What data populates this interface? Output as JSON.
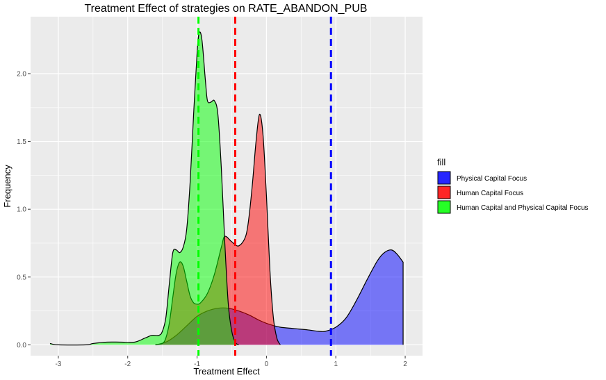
{
  "chart_data": {
    "type": "area",
    "title": "Treatment Effect of strategies on RATE_ABANDON_PUB",
    "xlabel": "Treatment Effect",
    "ylabel": "Frequency",
    "xlim": [
      -3.4,
      2.25
    ],
    "ylim": [
      -0.08,
      2.42
    ],
    "x_ticks": [
      -3,
      -2,
      -1,
      0,
      1,
      2
    ],
    "x_tick_labels": [
      "-3",
      "-2",
      "-1",
      "0",
      "1",
      "2"
    ],
    "y_ticks": [
      0.0,
      0.5,
      1.0,
      1.5,
      2.0
    ],
    "y_tick_labels": [
      "0.0",
      "0.5",
      "1.0",
      "1.5",
      "2.0"
    ],
    "grid": true,
    "panel_background": "#ebebeb",
    "legend": {
      "title": "fill",
      "position": "right",
      "entries": [
        "Physical Capital Focus",
        "Human Capital Focus",
        "Human Capital and Physical Capital Focus"
      ]
    },
    "series": [
      {
        "name": "Physical Capital Focus",
        "fill": "#0000ff",
        "opacity": 0.5,
        "mean": 0.93,
        "points": [
          [
            -1.6,
            0.0
          ],
          [
            -1.45,
            0.02
          ],
          [
            -1.3,
            0.07
          ],
          [
            -1.15,
            0.14
          ],
          [
            -1.0,
            0.21
          ],
          [
            -0.85,
            0.25
          ],
          [
            -0.7,
            0.27
          ],
          [
            -0.55,
            0.27
          ],
          [
            -0.4,
            0.25
          ],
          [
            -0.25,
            0.22
          ],
          [
            -0.1,
            0.18
          ],
          [
            0.05,
            0.15
          ],
          [
            0.2,
            0.13
          ],
          [
            0.4,
            0.12
          ],
          [
            0.6,
            0.11
          ],
          [
            0.75,
            0.1
          ],
          [
            0.85,
            0.1
          ],
          [
            1.0,
            0.13
          ],
          [
            1.15,
            0.2
          ],
          [
            1.3,
            0.33
          ],
          [
            1.45,
            0.48
          ],
          [
            1.6,
            0.62
          ],
          [
            1.7,
            0.68
          ],
          [
            1.8,
            0.7
          ],
          [
            1.88,
            0.67
          ],
          [
            1.97,
            0.61
          ]
        ]
      },
      {
        "name": "Human Capital Focus",
        "fill": "#ff0000",
        "opacity": 0.5,
        "mean": -0.45,
        "points": [
          [
            -1.6,
            0.0
          ],
          [
            -1.5,
            0.01
          ],
          [
            -1.45,
            0.05
          ],
          [
            -1.4,
            0.16
          ],
          [
            -1.35,
            0.35
          ],
          [
            -1.3,
            0.53
          ],
          [
            -1.25,
            0.61
          ],
          [
            -1.2,
            0.58
          ],
          [
            -1.15,
            0.47
          ],
          [
            -1.1,
            0.36
          ],
          [
            -1.05,
            0.31
          ],
          [
            -1.0,
            0.3
          ],
          [
            -0.95,
            0.31
          ],
          [
            -0.85,
            0.38
          ],
          [
            -0.75,
            0.52
          ],
          [
            -0.65,
            0.72
          ],
          [
            -0.6,
            0.8
          ],
          [
            -0.5,
            0.76
          ],
          [
            -0.4,
            0.73
          ],
          [
            -0.3,
            0.8
          ],
          [
            -0.25,
            0.95
          ],
          [
            -0.2,
            1.2
          ],
          [
            -0.15,
            1.5
          ],
          [
            -0.1,
            1.7
          ],
          [
            -0.05,
            1.55
          ],
          [
            0.0,
            1.1
          ],
          [
            0.05,
            0.55
          ],
          [
            0.1,
            0.2
          ],
          [
            0.15,
            0.05
          ],
          [
            0.2,
            0.0
          ]
        ]
      },
      {
        "name": "Human Capital and Physical Capital Focus",
        "fill": "#00ff00",
        "opacity": 0.5,
        "mean": -0.98,
        "points": [
          [
            -3.12,
            0.01
          ],
          [
            -3.0,
            0.0
          ],
          [
            -2.6,
            0.0
          ],
          [
            -2.5,
            0.01
          ],
          [
            -2.3,
            0.02
          ],
          [
            -2.1,
            0.02
          ],
          [
            -1.9,
            0.02
          ],
          [
            -1.75,
            0.05
          ],
          [
            -1.65,
            0.07
          ],
          [
            -1.55,
            0.07
          ],
          [
            -1.5,
            0.1
          ],
          [
            -1.45,
            0.2
          ],
          [
            -1.4,
            0.45
          ],
          [
            -1.35,
            0.68
          ],
          [
            -1.3,
            0.7
          ],
          [
            -1.25,
            0.68
          ],
          [
            -1.2,
            0.72
          ],
          [
            -1.15,
            0.85
          ],
          [
            -1.1,
            1.2
          ],
          [
            -1.05,
            1.7
          ],
          [
            -1.0,
            2.15
          ],
          [
            -0.97,
            2.3
          ],
          [
            -0.93,
            2.25
          ],
          [
            -0.88,
            1.95
          ],
          [
            -0.85,
            1.8
          ],
          [
            -0.8,
            1.79
          ],
          [
            -0.75,
            1.8
          ],
          [
            -0.7,
            1.7
          ],
          [
            -0.65,
            1.3
          ],
          [
            -0.6,
            0.75
          ],
          [
            -0.55,
            0.3
          ],
          [
            -0.5,
            0.1
          ],
          [
            -0.45,
            0.02
          ],
          [
            -0.4,
            0.0
          ]
        ]
      }
    ]
  }
}
